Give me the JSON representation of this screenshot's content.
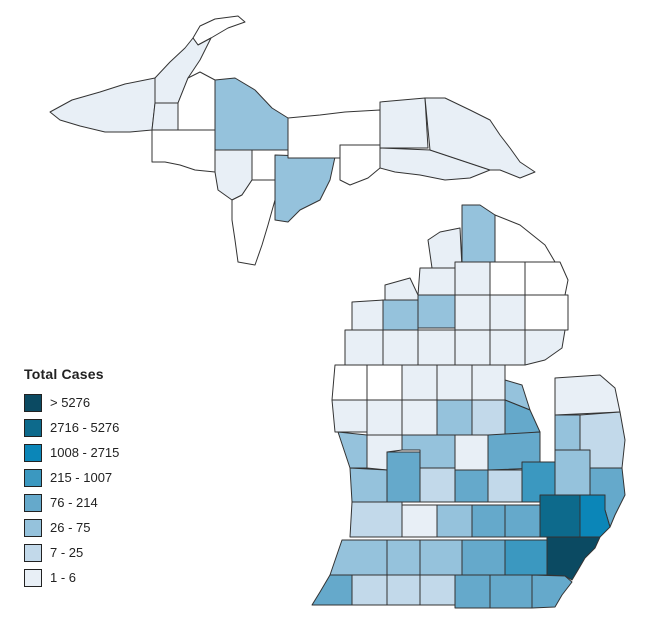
{
  "legend": {
    "title": "Total Cases",
    "items": [
      {
        "label": "> 5276",
        "color": "#0b4a62"
      },
      {
        "label": "2716 - 5276",
        "color": "#0d6a8c"
      },
      {
        "label": "1008 - 2715",
        "color": "#0b86b8"
      },
      {
        "label": "215 - 1007",
        "color": "#3b98c0"
      },
      {
        "label": "76 - 214",
        "color": "#65a9cb"
      },
      {
        "label": "26 - 75",
        "color": "#95c2dc"
      },
      {
        "label": "7 - 25",
        "color": "#c2d9ea"
      },
      {
        "label": "1 - 6",
        "color": "#e8eff6"
      }
    ]
  },
  "no_data_color": "#ffffff",
  "border_color": "#333333"
}
